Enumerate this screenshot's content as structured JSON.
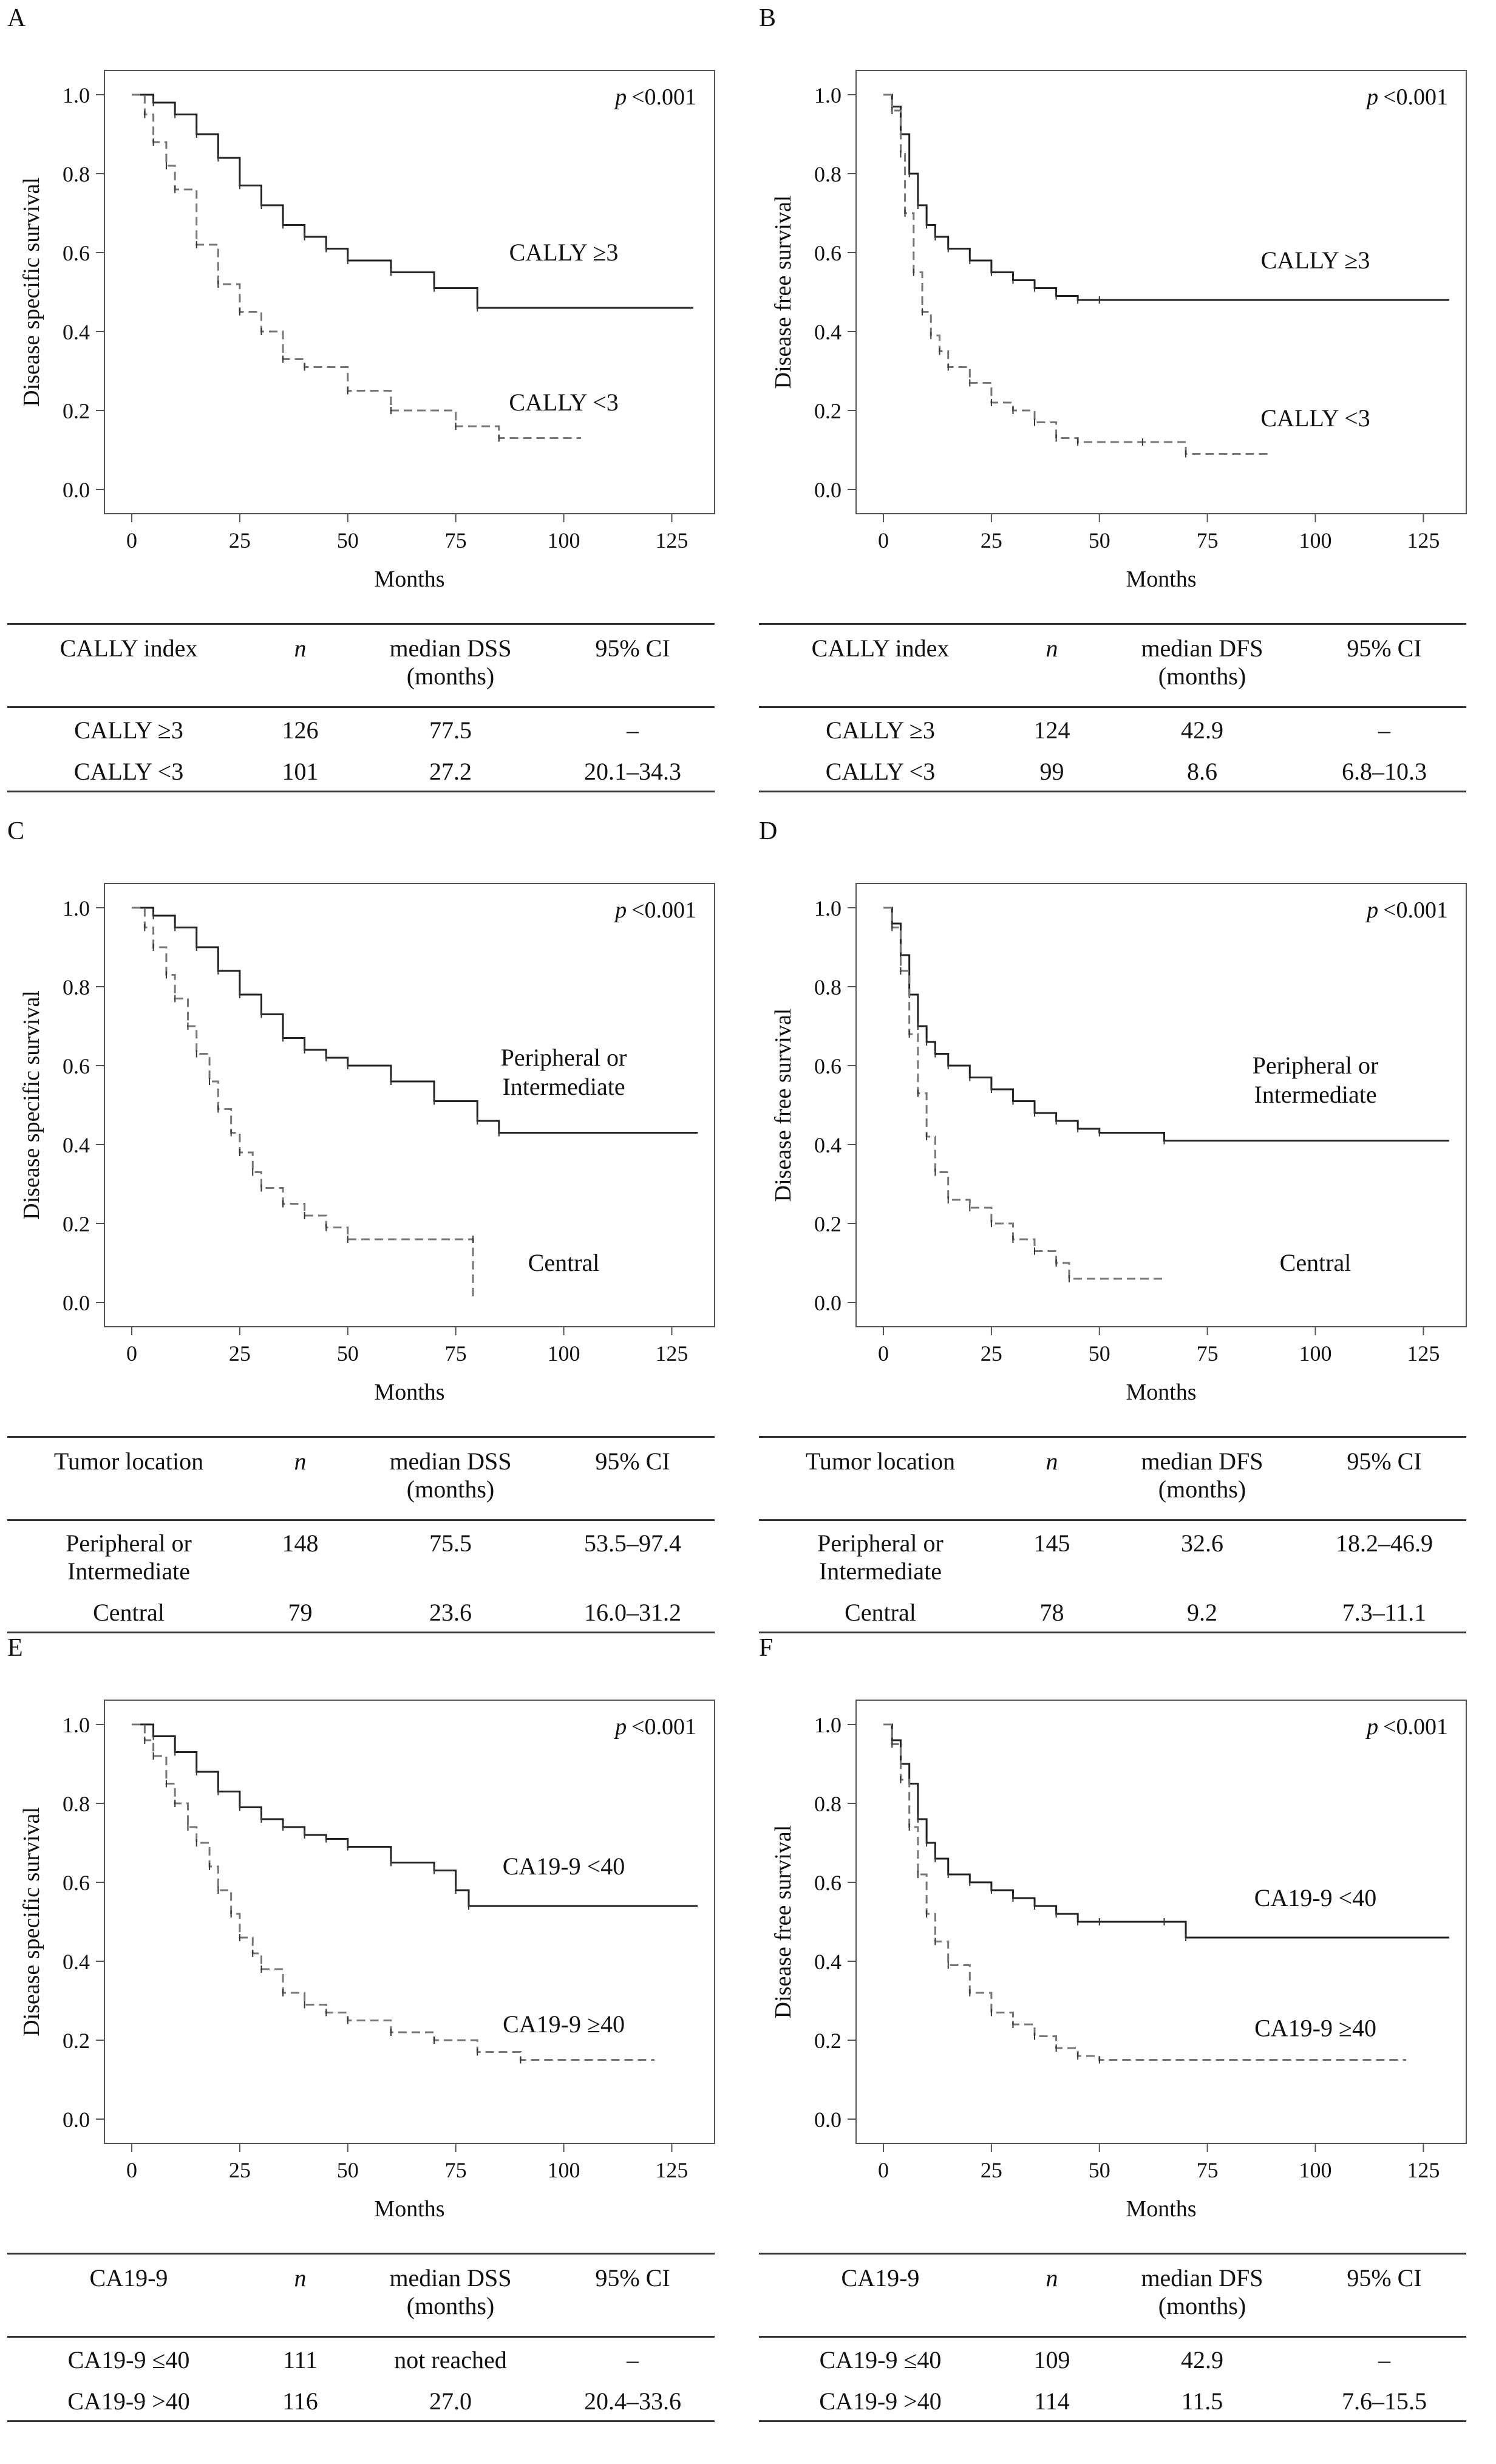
{
  "chart_data": [
    {
      "id": "A",
      "type": "line",
      "xlabel": "Months",
      "ylabel": "Disease specific survival",
      "xlim": [
        0,
        130
      ],
      "ylim": [
        0,
        1.0
      ],
      "xticks": [
        "0",
        "25",
        "50",
        "75",
        "100",
        "125"
      ],
      "yticks": [
        "0.0",
        "0.2",
        "0.4",
        "0.6",
        "0.8",
        "1.0"
      ],
      "p_label": "p",
      "p_value": "<0.001",
      "series": [
        {
          "name": "CALLY ≥3",
          "style": "solid",
          "label_anchor": [
            100,
            0.58
          ],
          "x": [
            0,
            5,
            10,
            15,
            20,
            25,
            30,
            35,
            40,
            45,
            50,
            60,
            70,
            80,
            130
          ],
          "y": [
            1.0,
            0.98,
            0.95,
            0.9,
            0.84,
            0.77,
            0.72,
            0.67,
            0.64,
            0.61,
            0.58,
            0.55,
            0.51,
            0.46,
            0.46
          ]
        },
        {
          "name": "CALLY <3",
          "style": "dashed",
          "label_anchor": [
            100,
            0.2
          ],
          "x": [
            0,
            3,
            5,
            8,
            10,
            15,
            20,
            25,
            30,
            35,
            40,
            50,
            60,
            75,
            85,
            104
          ],
          "y": [
            1.0,
            0.95,
            0.88,
            0.82,
            0.76,
            0.62,
            0.52,
            0.45,
            0.4,
            0.33,
            0.31,
            0.25,
            0.2,
            0.16,
            0.13,
            0.13
          ]
        }
      ],
      "table": {
        "headers": [
          "CALLY index",
          "n",
          "median DSS\n(months)",
          "95% CI"
        ],
        "rows": [
          [
            "CALLY ≥3",
            "126",
            "77.5",
            "–"
          ],
          [
            "CALLY <3",
            "101",
            "27.2",
            "20.1–34.3"
          ]
        ]
      }
    },
    {
      "id": "B",
      "type": "line",
      "xlabel": "Months",
      "ylabel": "Disease free survival",
      "xlim": [
        0,
        130
      ],
      "ylim": [
        0,
        1.0
      ],
      "xticks": [
        "0",
        "25",
        "50",
        "75",
        "100",
        "125"
      ],
      "yticks": [
        "0.0",
        "0.2",
        "0.4",
        "0.6",
        "0.8",
        "1.0"
      ],
      "p_label": "p",
      "p_value": "<0.001",
      "series": [
        {
          "name": "CALLY ≥3",
          "style": "solid",
          "label_anchor": [
            100,
            0.56
          ],
          "x": [
            0,
            2,
            4,
            6,
            8,
            10,
            12,
            15,
            20,
            25,
            30,
            35,
            40,
            45,
            50,
            131
          ],
          "y": [
            1.0,
            0.97,
            0.9,
            0.8,
            0.72,
            0.67,
            0.64,
            0.61,
            0.58,
            0.55,
            0.53,
            0.51,
            0.49,
            0.48,
            0.48,
            0.48
          ]
        },
        {
          "name": "CALLY <3",
          "style": "dashed",
          "label_anchor": [
            100,
            0.16
          ],
          "x": [
            0,
            2,
            4,
            5,
            7,
            9,
            11,
            13,
            15,
            20,
            25,
            30,
            35,
            40,
            45,
            60,
            70,
            90
          ],
          "y": [
            1.0,
            0.96,
            0.85,
            0.7,
            0.55,
            0.45,
            0.39,
            0.35,
            0.31,
            0.27,
            0.22,
            0.2,
            0.17,
            0.13,
            0.12,
            0.12,
            0.09,
            0.09
          ]
        }
      ],
      "table": {
        "headers": [
          "CALLY index",
          "n",
          "median DFS\n(months)",
          "95% CI"
        ],
        "rows": [
          [
            "CALLY ≥3",
            "124",
            "42.9",
            "–"
          ],
          [
            "CALLY <3",
            "99",
            "8.6",
            "6.8–10.3"
          ]
        ]
      }
    },
    {
      "id": "C",
      "type": "line",
      "xlabel": "Months",
      "ylabel": "Disease specific survival",
      "xlim": [
        0,
        130
      ],
      "ylim": [
        0,
        1.0
      ],
      "xticks": [
        "0",
        "25",
        "50",
        "75",
        "100",
        "125"
      ],
      "yticks": [
        "0.0",
        "0.2",
        "0.4",
        "0.6",
        "0.8",
        "1.0"
      ],
      "p_label": "p",
      "p_value": "<0.001",
      "series": [
        {
          "name": "Peripheral or\nIntermediate",
          "style": "solid",
          "label_anchor": [
            100,
            0.6
          ],
          "x": [
            0,
            5,
            10,
            15,
            20,
            25,
            30,
            35,
            40,
            45,
            50,
            60,
            70,
            80,
            85,
            131
          ],
          "y": [
            1.0,
            0.98,
            0.95,
            0.9,
            0.84,
            0.78,
            0.73,
            0.67,
            0.64,
            0.62,
            0.6,
            0.56,
            0.51,
            0.46,
            0.43,
            0.43
          ]
        },
        {
          "name": "Central",
          "style": "dashed",
          "label_anchor": [
            100,
            0.08
          ],
          "x": [
            0,
            3,
            5,
            8,
            10,
            13,
            15,
            18,
            20,
            23,
            25,
            28,
            30,
            35,
            40,
            45,
            50,
            79,
            79
          ],
          "y": [
            1.0,
            0.95,
            0.9,
            0.83,
            0.77,
            0.7,
            0.63,
            0.56,
            0.49,
            0.43,
            0.38,
            0.33,
            0.29,
            0.25,
            0.22,
            0.19,
            0.16,
            0.16,
            0.01
          ]
        }
      ],
      "table": {
        "headers": [
          "Tumor location",
          "n",
          "median DSS\n(months)",
          "95% CI"
        ],
        "rows": [
          [
            "Peripheral or\nIntermediate",
            "148",
            "75.5",
            "53.5–97.4"
          ],
          [
            "Central",
            "79",
            "23.6",
            "16.0–31.2"
          ]
        ]
      }
    },
    {
      "id": "D",
      "type": "line",
      "xlabel": "Months",
      "ylabel": "Disease free survival",
      "xlim": [
        0,
        130
      ],
      "ylim": [
        0,
        1.0
      ],
      "xticks": [
        "0",
        "25",
        "50",
        "75",
        "100",
        "125"
      ],
      "yticks": [
        "0.0",
        "0.2",
        "0.4",
        "0.6",
        "0.8",
        "1.0"
      ],
      "p_label": "p",
      "p_value": "<0.001",
      "series": [
        {
          "name": "Peripheral or\nIntermediate",
          "style": "solid",
          "label_anchor": [
            100,
            0.58
          ],
          "x": [
            0,
            2,
            4,
            6,
            8,
            10,
            12,
            15,
            20,
            25,
            30,
            35,
            40,
            45,
            50,
            65,
            131
          ],
          "y": [
            1.0,
            0.96,
            0.88,
            0.78,
            0.7,
            0.66,
            0.63,
            0.6,
            0.57,
            0.54,
            0.51,
            0.48,
            0.46,
            0.44,
            0.43,
            0.41,
            0.41
          ]
        },
        {
          "name": "Central",
          "style": "dashed",
          "label_anchor": [
            100,
            0.08
          ],
          "x": [
            0,
            2,
            4,
            6,
            8,
            10,
            12,
            15,
            20,
            25,
            30,
            35,
            40,
            43,
            65
          ],
          "y": [
            1.0,
            0.95,
            0.84,
            0.68,
            0.53,
            0.42,
            0.33,
            0.26,
            0.24,
            0.2,
            0.16,
            0.13,
            0.1,
            0.06,
            0.06
          ]
        }
      ],
      "table": {
        "headers": [
          "Tumor location",
          "n",
          "median DFS\n(months)",
          "95% CI"
        ],
        "rows": [
          [
            "Peripheral or\nIntermediate",
            "145",
            "32.6",
            "18.2–46.9"
          ],
          [
            "Central",
            "78",
            "9.2",
            "7.3–11.1"
          ]
        ]
      }
    },
    {
      "id": "E",
      "type": "line",
      "xlabel": "Months",
      "ylabel": "Disease specific survival",
      "xlim": [
        0,
        130
      ],
      "ylim": [
        0,
        1.0
      ],
      "xticks": [
        "0",
        "25",
        "50",
        "75",
        "100",
        "125"
      ],
      "yticks": [
        "0.0",
        "0.2",
        "0.4",
        "0.6",
        "0.8",
        "1.0"
      ],
      "p_label": "p",
      "p_value": "<0.001",
      "series": [
        {
          "name": "CA19-9 <40",
          "style": "solid",
          "label_anchor": [
            100,
            0.62
          ],
          "x": [
            0,
            5,
            10,
            15,
            20,
            25,
            30,
            35,
            40,
            45,
            50,
            60,
            70,
            75,
            78,
            131
          ],
          "y": [
            1.0,
            0.97,
            0.93,
            0.88,
            0.83,
            0.79,
            0.76,
            0.74,
            0.72,
            0.71,
            0.69,
            0.65,
            0.63,
            0.58,
            0.54,
            0.54
          ]
        },
        {
          "name": "CA19-9 ≥40",
          "style": "dashed",
          "label_anchor": [
            100,
            0.22
          ],
          "x": [
            0,
            3,
            5,
            8,
            10,
            13,
            15,
            18,
            20,
            23,
            25,
            28,
            30,
            35,
            40,
            45,
            50,
            60,
            70,
            80,
            90,
            121
          ],
          "y": [
            1.0,
            0.96,
            0.92,
            0.85,
            0.8,
            0.74,
            0.7,
            0.64,
            0.58,
            0.52,
            0.46,
            0.42,
            0.38,
            0.32,
            0.29,
            0.27,
            0.25,
            0.22,
            0.2,
            0.17,
            0.15,
            0.15
          ]
        }
      ],
      "table": {
        "headers": [
          "CA19-9",
          "n",
          "median DSS\n(months)",
          "95% CI"
        ],
        "rows": [
          [
            "CA19-9 ≤40",
            "111",
            "not reached",
            "–"
          ],
          [
            "CA19-9 >40",
            "116",
            "27.0",
            "20.4–33.6"
          ]
        ]
      }
    },
    {
      "id": "F",
      "type": "line",
      "xlabel": "Months",
      "ylabel": "Disease free survival",
      "xlim": [
        0,
        130
      ],
      "ylim": [
        0,
        1.0
      ],
      "xticks": [
        "0",
        "25",
        "50",
        "75",
        "100",
        "125"
      ],
      "yticks": [
        "0.0",
        "0.2",
        "0.4",
        "0.6",
        "0.8",
        "1.0"
      ],
      "p_label": "p",
      "p_value": "<0.001",
      "series": [
        {
          "name": "CA19-9 <40",
          "style": "solid",
          "label_anchor": [
            100,
            0.54
          ],
          "x": [
            0,
            2,
            4,
            6,
            8,
            10,
            12,
            15,
            20,
            25,
            30,
            35,
            40,
            45,
            50,
            65,
            70,
            131
          ],
          "y": [
            1.0,
            0.96,
            0.9,
            0.85,
            0.76,
            0.7,
            0.66,
            0.62,
            0.6,
            0.58,
            0.56,
            0.54,
            0.52,
            0.5,
            0.5,
            0.5,
            0.46,
            0.46
          ]
        },
        {
          "name": "CA19-9 ≥40",
          "style": "dashed",
          "label_anchor": [
            100,
            0.21
          ],
          "x": [
            0,
            2,
            4,
            6,
            8,
            10,
            12,
            15,
            20,
            25,
            30,
            35,
            40,
            45,
            50,
            121
          ],
          "y": [
            1.0,
            0.95,
            0.86,
            0.74,
            0.62,
            0.52,
            0.45,
            0.39,
            0.32,
            0.27,
            0.24,
            0.21,
            0.18,
            0.16,
            0.15,
            0.15
          ]
        }
      ],
      "table": {
        "headers": [
          "CA19-9",
          "n",
          "median DFS\n(months)",
          "95% CI"
        ],
        "rows": [
          [
            "CA19-9 ≤40",
            "109",
            "42.9",
            "–"
          ],
          [
            "CA19-9 >40",
            "114",
            "11.5",
            "7.6–15.5"
          ]
        ]
      }
    }
  ]
}
